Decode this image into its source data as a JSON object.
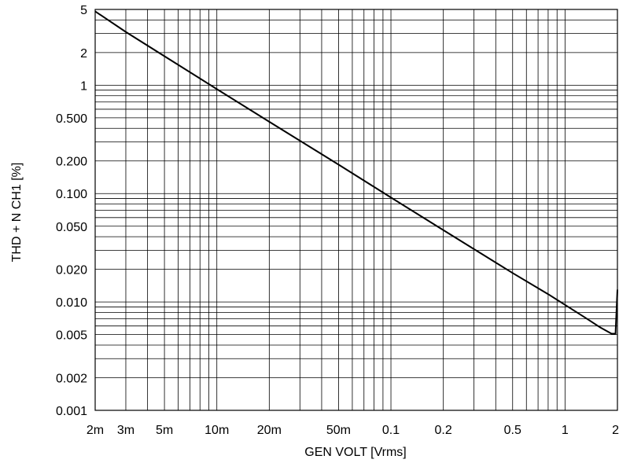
{
  "chart_data": {
    "type": "line",
    "title": "",
    "xlabel": "GEN VOLT [Vrms]",
    "ylabel": "THD + N CH1 [%]",
    "x_scale": "log",
    "y_scale": "log",
    "xlim": [
      0.002,
      2
    ],
    "ylim": [
      0.001,
      5
    ],
    "grid": true,
    "legend": "none",
    "x_ticks": [
      {
        "value": 0.002,
        "label": "2m"
      },
      {
        "value": 0.003,
        "label": "3m"
      },
      {
        "value": 0.005,
        "label": "5m"
      },
      {
        "value": 0.01,
        "label": "10m"
      },
      {
        "value": 0.02,
        "label": "20m"
      },
      {
        "value": 0.05,
        "label": "50m"
      },
      {
        "value": 0.1,
        "label": "0.1"
      },
      {
        "value": 0.2,
        "label": "0.2"
      },
      {
        "value": 0.5,
        "label": "0.5"
      },
      {
        "value": 1,
        "label": "1"
      },
      {
        "value": 2,
        "label": "2"
      }
    ],
    "y_ticks": [
      {
        "value": 5,
        "label": "5"
      },
      {
        "value": 2,
        "label": "2"
      },
      {
        "value": 1,
        "label": "1"
      },
      {
        "value": 0.5,
        "label": "0.500"
      },
      {
        "value": 0.2,
        "label": "0.200"
      },
      {
        "value": 0.1,
        "label": "0.100"
      },
      {
        "value": 0.05,
        "label": "0.050"
      },
      {
        "value": 0.02,
        "label": "0.020"
      },
      {
        "value": 0.01,
        "label": "0.010"
      },
      {
        "value": 0.005,
        "label": "0.005"
      },
      {
        "value": 0.002,
        "label": "0.002"
      },
      {
        "value": 0.001,
        "label": "0.001"
      }
    ],
    "series": [
      {
        "color": "#000000",
        "x": [
          0.002,
          0.003,
          0.005,
          0.01,
          0.02,
          0.05,
          0.1,
          0.2,
          0.5,
          0.8,
          1,
          1.3,
          1.6,
          1.85,
          1.95,
          2
        ],
        "y": [
          4.8,
          3.1,
          1.85,
          0.92,
          0.46,
          0.185,
          0.092,
          0.046,
          0.0185,
          0.0118,
          0.0094,
          0.0072,
          0.0058,
          0.0051,
          0.0051,
          0.013
        ]
      }
    ]
  }
}
